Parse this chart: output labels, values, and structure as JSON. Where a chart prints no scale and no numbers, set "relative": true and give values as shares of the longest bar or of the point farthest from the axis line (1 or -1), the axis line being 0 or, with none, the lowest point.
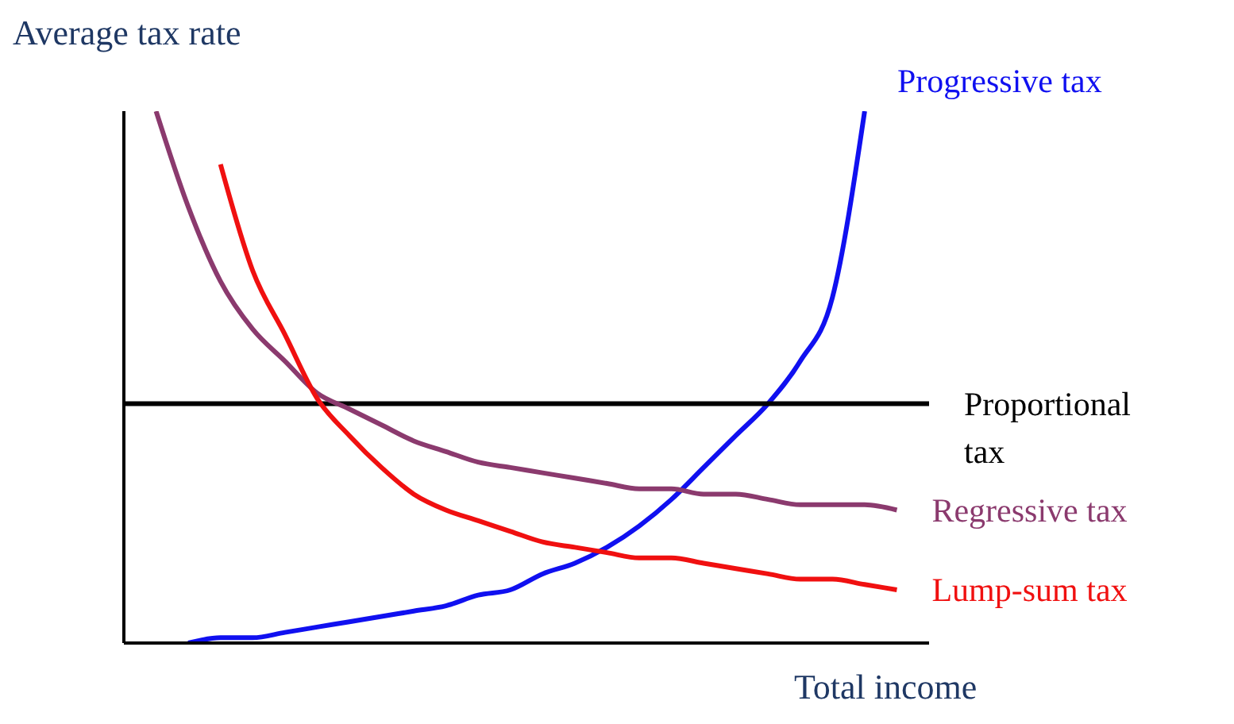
{
  "chart_data": {
    "type": "line",
    "relative": true,
    "xlabel": "Total income",
    "ylabel": "Average tax rate",
    "legend": false,
    "grid": false,
    "marker": "none",
    "line_style": "solid",
    "categories": [
      null,
      null,
      null,
      null,
      null,
      null,
      null,
      null,
      null,
      null,
      null,
      null,
      null,
      null,
      null,
      null,
      null,
      null,
      null,
      null,
      null,
      null,
      null,
      null,
      null,
      null
    ],
    "series": [
      {
        "name": "Progressive tax",
        "color": "#1010f0",
        "values": [
          null,
          null,
          0,
          0.01,
          0.01,
          0.02,
          0.03,
          0.04,
          0.05,
          0.06,
          0.07,
          0.09,
          0.1,
          0.13,
          0.15,
          0.18,
          0.22,
          0.27,
          0.33,
          0.39,
          0.45,
          0.53,
          0.65,
          1.0,
          null,
          null
        ]
      },
      {
        "name": "Proportional tax",
        "color": "#000000",
        "values": [
          0.45,
          0.45,
          0.45,
          0.45,
          0.45,
          0.45,
          0.45,
          0.45,
          0.45,
          0.45,
          0.45,
          0.45,
          0.45,
          0.45,
          0.45,
          0.45,
          0.45,
          0.45,
          0.45,
          0.45,
          0.45,
          0.45,
          0.45,
          0.45,
          0.45,
          0.45
        ]
      },
      {
        "name": "Regressive tax",
        "color": "#8b3a6e",
        "values": [
          null,
          1.0,
          0.82,
          0.68,
          0.59,
          0.53,
          0.47,
          0.44,
          0.41,
          0.38,
          0.36,
          0.34,
          0.33,
          0.32,
          0.31,
          0.3,
          0.29,
          0.29,
          0.28,
          0.28,
          0.27,
          0.26,
          0.26,
          0.26,
          0.25,
          null
        ]
      },
      {
        "name": "Lump-sum tax",
        "color": "#f01010",
        "values": [
          null,
          null,
          null,
          0.9,
          0.7,
          0.58,
          0.46,
          0.39,
          0.33,
          0.28,
          0.25,
          0.23,
          0.21,
          0.19,
          0.18,
          0.17,
          0.16,
          0.16,
          0.15,
          0.14,
          0.13,
          0.12,
          0.12,
          0.11,
          0.1,
          null
        ]
      }
    ]
  }
}
